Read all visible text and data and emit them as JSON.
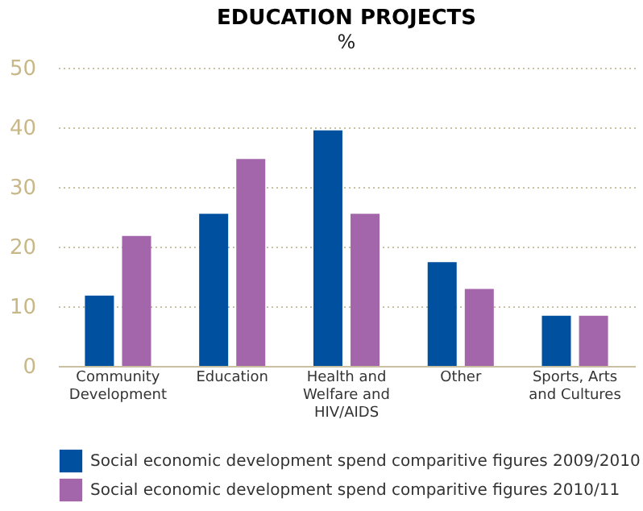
{
  "chart_data": {
    "type": "bar",
    "title": "EDUCATION PROJECTS",
    "subtitle": "%",
    "categories": [
      "Community Development",
      "Education",
      "Health and Welfare and HIV/AIDS",
      "Other",
      "Sports, Arts and Cultures"
    ],
    "series": [
      {
        "name": "Social economic development spend comparitive figures 2009/2010",
        "color": "#0050a0",
        "values": [
          11.8,
          25.5,
          39.5,
          17.4,
          8.4
        ]
      },
      {
        "name": "Social economic development spend comparitive figures 2010/11",
        "color": "#a466aa",
        "values": [
          21.8,
          34.7,
          25.5,
          12.9,
          8.4
        ]
      }
    ],
    "ylim": [
      0,
      50
    ],
    "yticks": [
      0,
      10,
      20,
      30,
      40,
      50
    ],
    "grid": "y",
    "legend": "bottom"
  }
}
